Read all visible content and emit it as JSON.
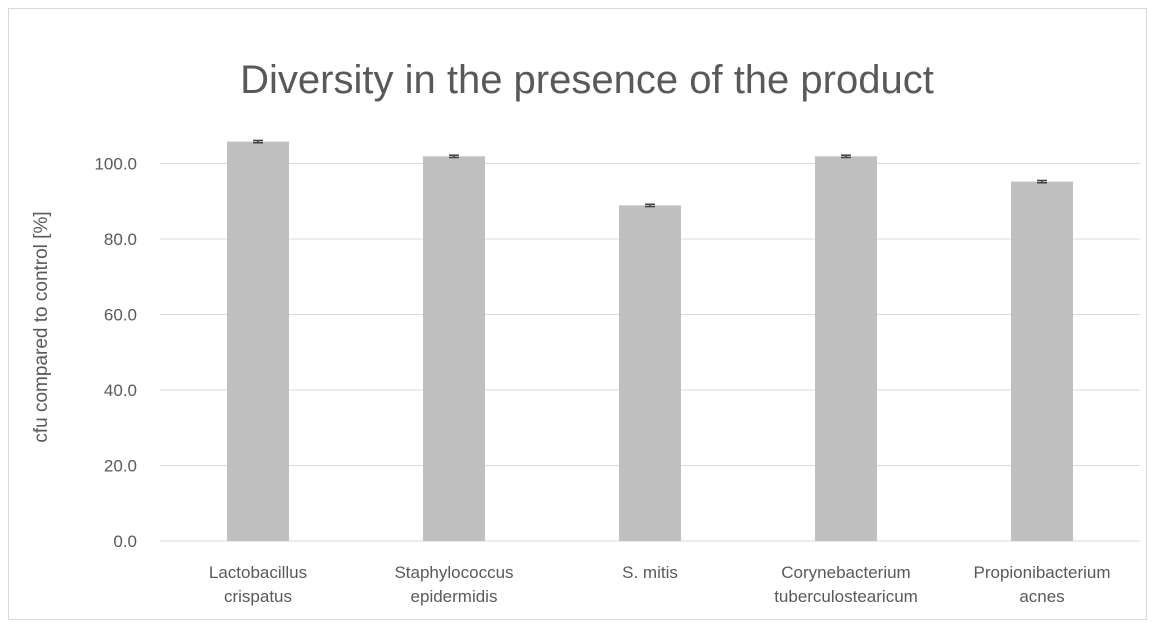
{
  "chart_data": {
    "type": "bar",
    "title": "Diversity in the presence of the product",
    "xlabel": "",
    "ylabel": "cfu compared to control [%]",
    "categories": [
      [
        "Lactobacillus",
        "crispatus"
      ],
      [
        "Staphylococcus",
        "epidermidis"
      ],
      [
        "S. mitis"
      ],
      [
        "Corynebacterium",
        "tuberculostearicum"
      ],
      [
        "Propionibacterium",
        "acnes"
      ]
    ],
    "values": [
      105.8,
      101.9,
      88.9,
      101.9,
      95.2
    ],
    "error": [
      0.3,
      0.3,
      0.3,
      0.3,
      0.3
    ],
    "ylim": [
      0,
      120
    ],
    "yticks": [
      "0.0",
      "20.0",
      "40.0",
      "60.0",
      "80.0",
      "100.0"
    ],
    "ytick_values": [
      0,
      20,
      40,
      60,
      80,
      100
    ],
    "grid": true,
    "legend": "none",
    "colors": {
      "bar": "#bfbfbf",
      "grid": "#d9d9d9",
      "text": "#595959",
      "error": "#404040"
    }
  }
}
